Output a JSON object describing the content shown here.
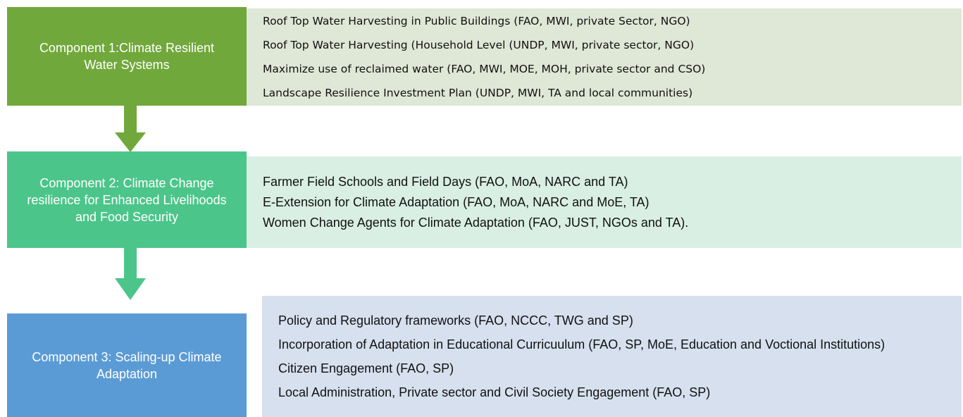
{
  "components": [
    {
      "label": "Component 1:Climate Resilient Water Systems",
      "items": [
        "Roof Top Water Harvesting  in Public Buildings (FAO, MWI, private Sector, NGO)",
        "Roof Top Water Harvesting (Household Level (UNDP, MWI, private sector, NGO)",
        "Maximize use of reclaimed water (FAO, MWI, MOE, MOH, private sector and CSO)",
        "Landscape Resilience Investment Plan (UNDP, MWI, TA and local communities)"
      ]
    },
    {
      "label": "Component 2: Climate Change resilience for Enhanced Livelihoods and Food Security",
      "items": [
        "Farmer Field Schools and Field Days (FAO, MoA, NARC and TA)",
        "E-Extension for Climate Adaptation (FAO, MoA, NARC and MoE, TA)",
        "Women Change Agents for Climate Adaptation (FAO, JUST, NGOs and TA)."
      ]
    },
    {
      "label": "Component 3: Scaling-up Climate Adaptation",
      "items": [
        "Policy and Regulatory frameworks (FAO, NCCC, TWG and SP)",
        "Incorporation of Adaptation in Educational Curricuulum (FAO, SP, MoE, Education and Voctional Institutions)",
        "Citizen Engagement (FAO, SP)",
        "Local Administration, Private sector and Civil Society Engagement (FAO, SP)"
      ]
    }
  ]
}
